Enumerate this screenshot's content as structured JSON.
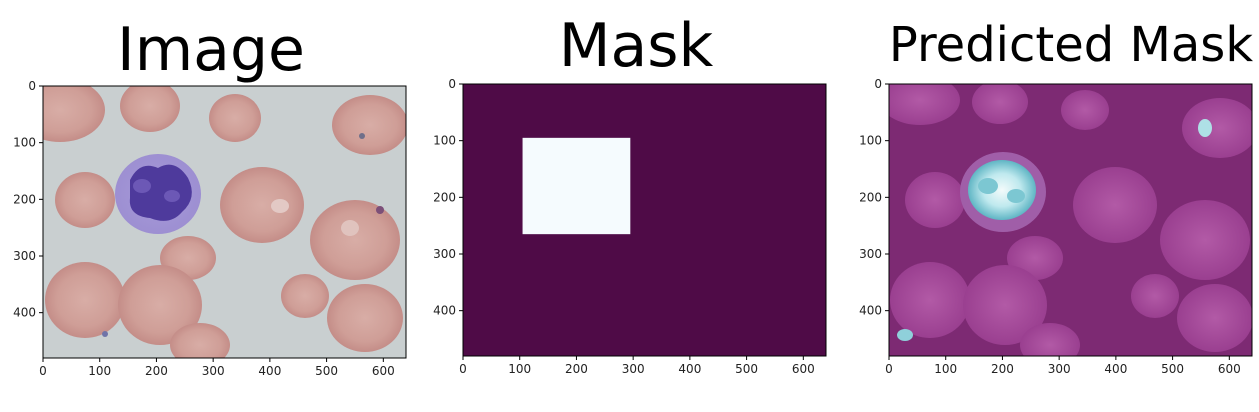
{
  "chart_data": [
    {
      "type": "image",
      "title": "Image",
      "xlim": [
        0,
        640
      ],
      "ylim": [
        480,
        0
      ],
      "xticks": [
        0,
        100,
        200,
        300,
        400,
        500,
        600
      ],
      "yticks": [
        0,
        100,
        200,
        300,
        400
      ],
      "content": "blood smear micrograph: pale grey-blue background, pink red blood cells, one purple-stained white blood cell"
    },
    {
      "type": "heatmap",
      "title": "Mask",
      "xlim": [
        0,
        640
      ],
      "ylim": [
        480,
        0
      ],
      "xticks": [
        0,
        100,
        200,
        300,
        400,
        500,
        600
      ],
      "yticks": [
        0,
        100,
        200,
        300,
        400
      ],
      "background_color": "#4f0b47",
      "foreground_color": "#f5fbfe",
      "box": {
        "x0": 105,
        "y0": 95,
        "x1": 295,
        "y1": 265
      }
    },
    {
      "type": "image",
      "title": "Predicted Mask",
      "xlim": [
        0,
        640
      ],
      "ylim": [
        480,
        0
      ],
      "xticks": [
        0,
        100,
        200,
        300,
        400,
        500,
        600
      ],
      "yticks": [
        0,
        100,
        200,
        300,
        400
      ],
      "content": "magenta-tinted blood smear with a bright cyan-white highlighted region on the white blood cell"
    }
  ]
}
